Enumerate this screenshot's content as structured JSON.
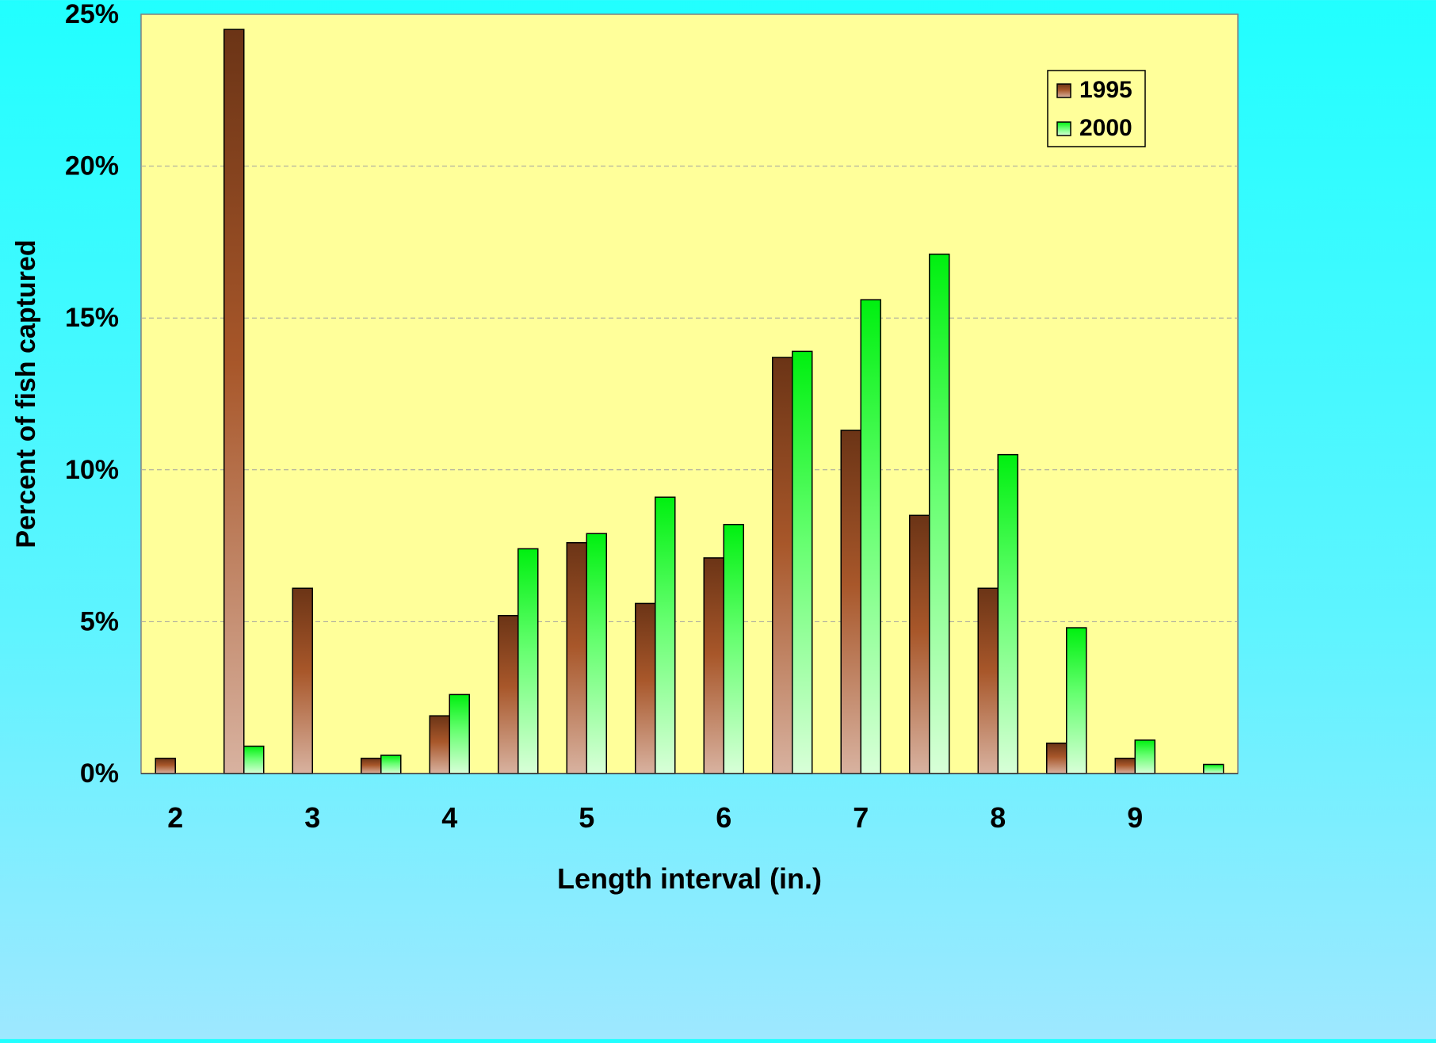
{
  "chart_data": {
    "type": "bar",
    "xlabel": "Length interval (in.)",
    "ylabel": "Percent of fish captured",
    "ylim": [
      0,
      25
    ],
    "yticks": [
      "0%",
      "5%",
      "10%",
      "15%",
      "20%",
      "25%"
    ],
    "categories": [
      "2.0",
      "2.5",
      "3.0",
      "3.5",
      "4.0",
      "4.5",
      "5.0",
      "5.5",
      "6.0",
      "6.5",
      "7.0",
      "7.5",
      "8.0",
      "8.5",
      "9.0",
      "9.5"
    ],
    "x_tick_labels": [
      "2",
      "3",
      "4",
      "5",
      "6",
      "7",
      "8",
      "9"
    ],
    "grid": "horizontal dashed",
    "legend_position": "top-right",
    "series": [
      {
        "name": "1995",
        "values": [
          0.5,
          24.5,
          6.1,
          0.5,
          1.9,
          5.2,
          7.6,
          5.6,
          7.1,
          13.7,
          11.3,
          8.5,
          6.1,
          1.0,
          0.5,
          0
        ],
        "color_top": "#6b3416",
        "color_mid": "#a8572a",
        "color_bottom": "#d8b2a0"
      },
      {
        "name": "2000",
        "values": [
          0,
          0.9,
          0,
          0.6,
          2.6,
          7.4,
          7.9,
          9.1,
          8.2,
          13.9,
          15.6,
          17.1,
          10.5,
          4.8,
          1.1,
          0.3
        ],
        "color_top": "#00f010",
        "color_mid": "#66ff70",
        "color_bottom": "#d8ffd8"
      }
    ],
    "plot_background": "#ffff9a"
  }
}
